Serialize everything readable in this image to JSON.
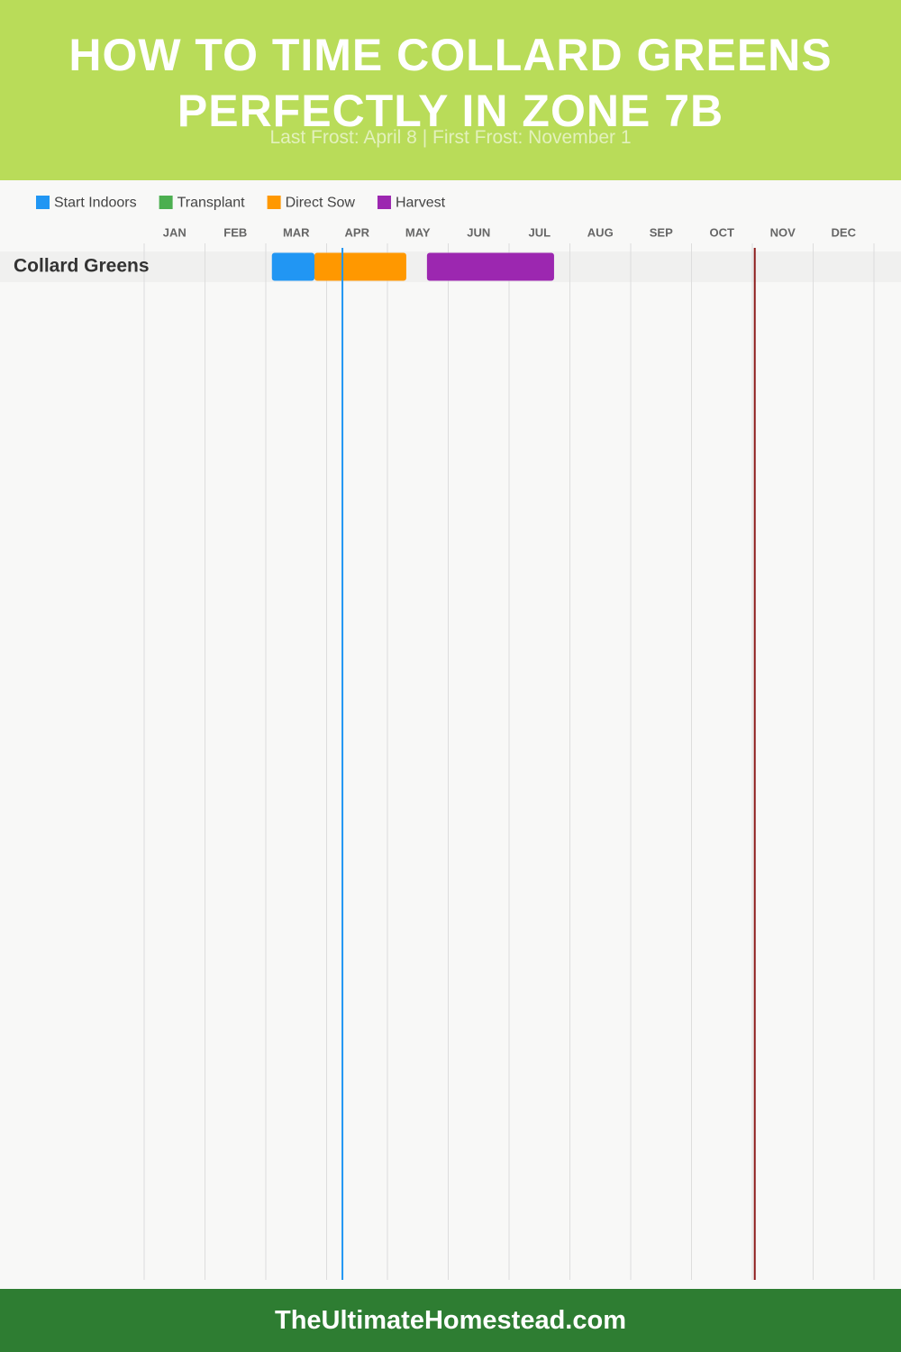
{
  "chart_data": {
    "type": "gantt",
    "title": "HOW TO TIME COLLARD GREENS PERFECTLY IN ZONE 7B",
    "subtitle": "Last Frost: April 8 | First Frost: November 1",
    "series": [
      {
        "name": "Start Indoors",
        "color": "#2196f3"
      },
      {
        "name": "Transplant",
        "color": "#4caf50"
      },
      {
        "name": "Direct Sow",
        "color": "#ff9800"
      },
      {
        "name": "Harvest",
        "color": "#9c27b0"
      }
    ],
    "categories": [
      "JAN",
      "FEB",
      "MAR",
      "APR",
      "MAY",
      "JUN",
      "JUL",
      "AUG",
      "SEP",
      "OCT",
      "NOV",
      "DEC"
    ],
    "xlim": [
      0,
      12
    ],
    "xticks": [
      0,
      1,
      2,
      3,
      4,
      5,
      6,
      7,
      8,
      9,
      10,
      11,
      12
    ],
    "rows": [
      {
        "label": "Collard Greens",
        "bars": [
          {
            "series": 0,
            "start": 2.1,
            "end": 2.8
          },
          {
            "series": 2,
            "start": 2.8,
            "end": 4.31
          },
          {
            "series": 3,
            "start": 4.65,
            "end": 6.74
          }
        ]
      }
    ],
    "markers": [
      {
        "value": 3.26,
        "color": "#2196f3"
      },
      {
        "value": 10.04,
        "color": "#8b1a1a"
      }
    ]
  },
  "footer": "TheUltimateHomestead.com"
}
